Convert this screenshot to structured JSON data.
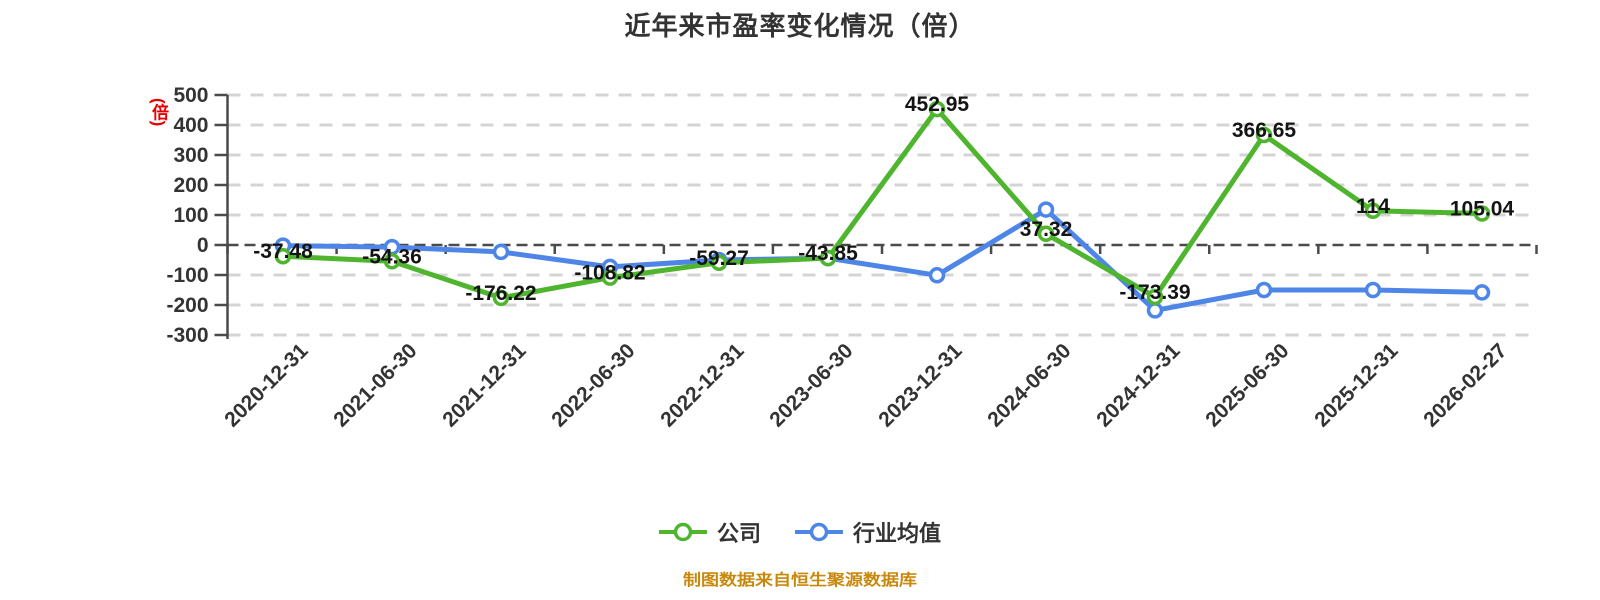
{
  "title": "近年来市盈率变化情况（倍）",
  "y_axis_unit": "(倍)",
  "source_note": "制图数据来自恒生聚源数据库",
  "legend": [
    {
      "label": "公司",
      "color": "#4FB52E"
    },
    {
      "label": "行业均值",
      "color": "#4E86E8"
    }
  ],
  "colors": {
    "company_green": "#4FB52E",
    "industry_blue": "#4E86E8",
    "grid": "#d4d4d4",
    "axis": "#4a4a4a",
    "data_label": "#141414",
    "axis_text": "#333333",
    "title_text": "#333333",
    "unit_red": "#e60000",
    "source_orange": "#c8880b"
  },
  "chart_data": {
    "type": "line",
    "title": "近年来市盈率变化情况（倍）",
    "categories": [
      "2020-12-31",
      "2021-06-30",
      "2021-12-31",
      "2022-06-30",
      "2022-12-31",
      "2023-06-30",
      "2023-12-31",
      "2024-06-30",
      "2024-12-31",
      "2025-06-30",
      "2025-12-31",
      "2026-02-27"
    ],
    "series": [
      {
        "name": "公司",
        "color": "#4FB52E",
        "values": [
          -37.48,
          -54.36,
          -176.22,
          -108.82,
          -59.27,
          -43.85,
          452.95,
          37.32,
          -173.39,
          366.65,
          114,
          105.04
        ],
        "labels": [
          "-37.48",
          "-54.36",
          "-176.22",
          "-108.82",
          "-59.27",
          "-43.85",
          "452.95",
          "37.32",
          "-173.39",
          "366.65",
          "114",
          "105.04"
        ]
      },
      {
        "name": "行业均值",
        "color": "#4E86E8",
        "values": [
          -2,
          -7,
          -23,
          -73,
          -50,
          -44,
          -101,
          118,
          -218,
          -150,
          -150,
          -158
        ]
      }
    ],
    "ylim": [
      -300,
      500
    ],
    "ytick_step": 100,
    "grid": "dashed",
    "legend_position": "bottom",
    "xlabel": "",
    "ylabel": "(倍)"
  }
}
